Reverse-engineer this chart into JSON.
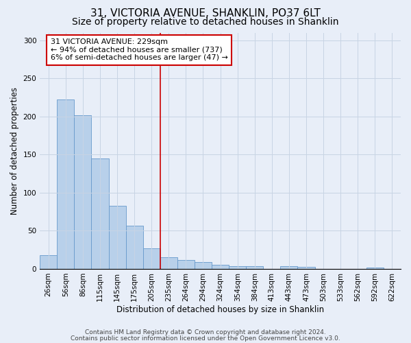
{
  "title": "31, VICTORIA AVENUE, SHANKLIN, PO37 6LT",
  "subtitle": "Size of property relative to detached houses in Shanklin",
  "xlabel": "Distribution of detached houses by size in Shanklin",
  "ylabel": "Number of detached properties",
  "footnote1": "Contains HM Land Registry data © Crown copyright and database right 2024.",
  "footnote2": "Contains public sector information licensed under the Open Government Licence v3.0.",
  "annotation_title": "31 VICTORIA AVENUE: 229sqm",
  "annotation_line1": "← 94% of detached houses are smaller (737)",
  "annotation_line2": "6% of semi-detached houses are larger (47) →",
  "bar_categories": [
    "26sqm",
    "56sqm",
    "86sqm",
    "115sqm",
    "145sqm",
    "175sqm",
    "205sqm",
    "235sqm",
    "264sqm",
    "294sqm",
    "324sqm",
    "354sqm",
    "384sqm",
    "413sqm",
    "443sqm",
    "473sqm",
    "503sqm",
    "533sqm",
    "562sqm",
    "592sqm",
    "622sqm"
  ],
  "bar_values": [
    18,
    222,
    202,
    145,
    83,
    57,
    27,
    15,
    12,
    9,
    5,
    4,
    4,
    0,
    4,
    3,
    0,
    0,
    0,
    2,
    0
  ],
  "bar_color": "#b8d0ea",
  "bar_edge_color": "#6699cc",
  "vertical_line_x": 7,
  "vertical_line_color": "#cc0000",
  "annotation_box_color": "white",
  "annotation_box_edge": "#cc0000",
  "ylim": [
    0,
    310
  ],
  "yticks": [
    0,
    50,
    100,
    150,
    200,
    250,
    300
  ],
  "grid_color": "#c8d4e4",
  "bg_color": "#e8eef8",
  "title_fontsize": 11,
  "subtitle_fontsize": 10,
  "axis_label_fontsize": 8.5,
  "tick_fontsize": 7.5,
  "annotation_fontsize": 8,
  "footnote_fontsize": 6.5
}
